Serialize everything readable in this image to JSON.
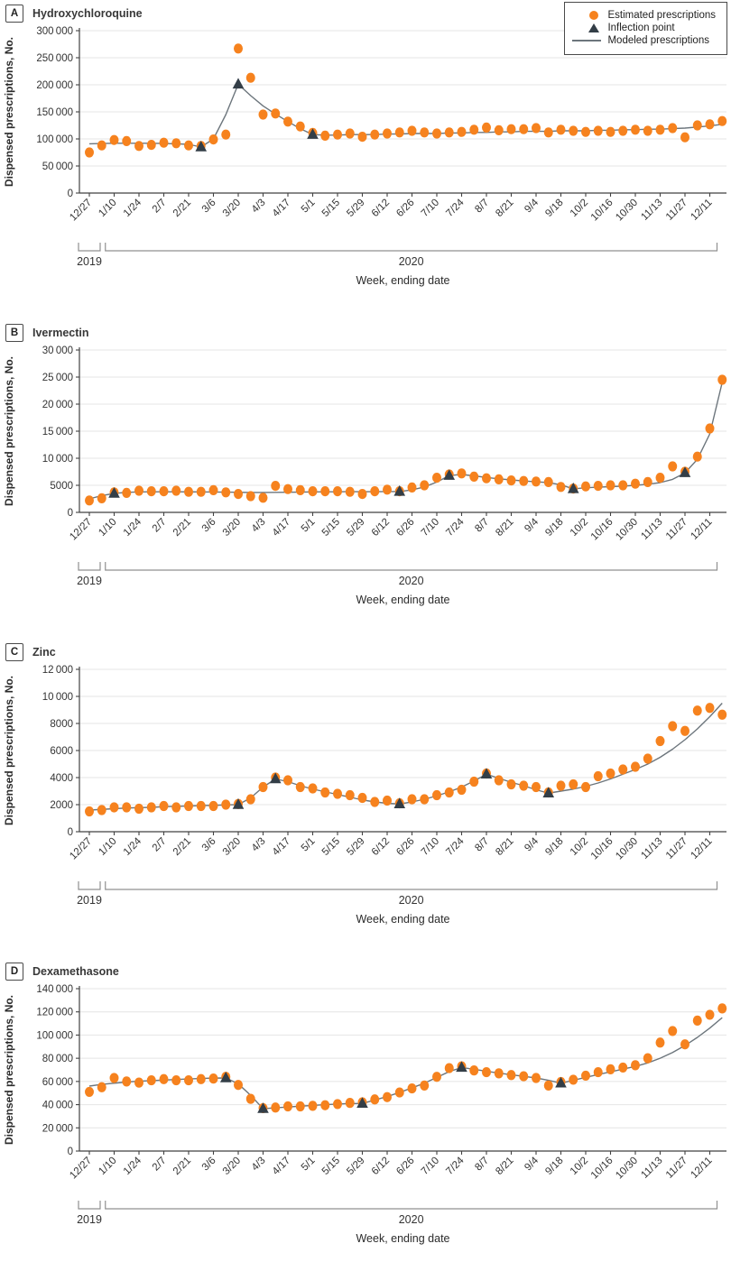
{
  "figure": {
    "x_axis_title": "Week, ending date",
    "era": {
      "y2019": "2019",
      "y2020": "2020"
    },
    "legend": [
      {
        "marker": "circle",
        "label": "Estimated prescriptions"
      },
      {
        "marker": "triangle",
        "label": "Inflection point"
      },
      {
        "marker": "line",
        "label": "Modeled prescriptions"
      }
    ],
    "colors": {
      "estimated": "#F6821E",
      "inflection": "#333E47",
      "model": "#6C757C",
      "grid": "#E4E4E4",
      "axis": "#424242",
      "tick_text": "#333333",
      "bracket": "#909090",
      "title_text": "#2B2B2B"
    }
  },
  "chart_data": [
    {
      "type": "scatter",
      "panel": "A",
      "title": "Hydroxychloroquine",
      "xlabel": "Week, ending date",
      "ylabel": "Dispensed prescriptions, No.",
      "ylim": [
        0,
        300000
      ],
      "ytick_step": 50000,
      "grid": "horizontal",
      "legend_position": "top-right",
      "x": [
        "12/27",
        "1/3",
        "1/10",
        "1/17",
        "1/24",
        "1/31",
        "2/7",
        "2/14",
        "2/21",
        "2/28",
        "3/6",
        "3/13",
        "3/20",
        "3/27",
        "4/3",
        "4/10",
        "4/17",
        "4/24",
        "5/1",
        "5/8",
        "5/15",
        "5/22",
        "5/29",
        "6/5",
        "6/12",
        "6/19",
        "6/26",
        "7/3",
        "7/10",
        "7/17",
        "7/24",
        "7/31",
        "8/7",
        "8/14",
        "8/21",
        "8/28",
        "9/4",
        "9/11",
        "9/18",
        "9/25",
        "10/2",
        "10/9",
        "10/16",
        "10/23",
        "10/30",
        "11/6",
        "11/13",
        "11/20",
        "11/27",
        "12/4",
        "12/11",
        "12/18"
      ],
      "series": [
        {
          "name": "Estimated prescriptions",
          "marker": "circle",
          "values": [
            75000,
            88000,
            98000,
            96000,
            87000,
            89000,
            93000,
            92000,
            88000,
            87000,
            99000,
            108000,
            267000,
            213000,
            145000,
            147000,
            132000,
            123000,
            111000,
            106000,
            108000,
            110000,
            104000,
            108000,
            110000,
            112000,
            115000,
            112000,
            110000,
            112000,
            113000,
            117000,
            121000,
            116000,
            118000,
            118000,
            120000,
            112000,
            117000,
            115000,
            113000,
            115000,
            113000,
            115000,
            117000,
            115000,
            117000,
            120000,
            103000,
            125000,
            127000,
            133000
          ]
        },
        {
          "name": "Modeled prescriptions",
          "marker": "line",
          "values": [
            91000,
            91500,
            92000,
            92000,
            92000,
            92000,
            91500,
            91000,
            90000,
            85000,
            100000,
            145000,
            201000,
            180000,
            161000,
            146000,
            132000,
            119000,
            108000,
            107000,
            107000,
            108000,
            108000,
            108000,
            109000,
            109000,
            110000,
            110000,
            110000,
            111000,
            111000,
            112000,
            112000,
            113000,
            113000,
            114000,
            114000,
            114000,
            115000,
            115000,
            115000,
            116000,
            116000,
            117000,
            117000,
            118000,
            118000,
            119000,
            120000,
            122000,
            124000,
            127000
          ]
        }
      ],
      "inflection_points": [
        {
          "x": "2/28",
          "index": 9,
          "value": 85000
        },
        {
          "x": "3/20",
          "index": 12,
          "value": 201000
        },
        {
          "x": "5/1",
          "index": 18,
          "value": 108000
        }
      ]
    },
    {
      "type": "scatter",
      "panel": "B",
      "title": "Ivermectin",
      "xlabel": "Week, ending date",
      "ylabel": "Dispensed prescriptions, No.",
      "ylim": [
        0,
        30000
      ],
      "ytick_step": 5000,
      "grid": "horizontal",
      "x": [
        "12/27",
        "1/3",
        "1/10",
        "1/17",
        "1/24",
        "1/31",
        "2/7",
        "2/14",
        "2/21",
        "2/28",
        "3/6",
        "3/13",
        "3/20",
        "3/27",
        "4/3",
        "4/10",
        "4/17",
        "4/24",
        "5/1",
        "5/8",
        "5/15",
        "5/22",
        "5/29",
        "6/5",
        "6/12",
        "6/19",
        "6/26",
        "7/3",
        "7/10",
        "7/17",
        "7/24",
        "7/31",
        "8/7",
        "8/14",
        "8/21",
        "8/28",
        "9/4",
        "9/11",
        "9/18",
        "9/25",
        "10/2",
        "10/9",
        "10/16",
        "10/23",
        "10/30",
        "11/6",
        "11/13",
        "11/20",
        "11/27",
        "12/4",
        "12/11",
        "12/18"
      ],
      "series": [
        {
          "name": "Estimated prescriptions",
          "marker": "circle",
          "values": [
            2200,
            2600,
            3700,
            3600,
            4000,
            3900,
            3900,
            4000,
            3800,
            3800,
            4100,
            3700,
            3400,
            3000,
            2700,
            4900,
            4300,
            4100,
            3900,
            3900,
            3900,
            3800,
            3400,
            3900,
            4200,
            3900,
            4600,
            5000,
            6400,
            7000,
            7200,
            6600,
            6300,
            6100,
            5900,
            5800,
            5700,
            5600,
            4700,
            4400,
            4800,
            4900,
            5000,
            5000,
            5300,
            5600,
            6400,
            8500,
            7500,
            10300,
            15500,
            24500
          ]
        },
        {
          "name": "Modeled prescriptions",
          "marker": "line",
          "values": [
            2500,
            3100,
            3500,
            3700,
            3780,
            3800,
            3800,
            3800,
            3790,
            3780,
            3760,
            3740,
            3710,
            3680,
            3670,
            3690,
            3720,
            3750,
            3780,
            3800,
            3810,
            3820,
            3820,
            3830,
            3840,
            3850,
            4150,
            4700,
            5600,
            6800,
            7000,
            6750,
            6450,
            6200,
            6000,
            5800,
            5650,
            5500,
            5100,
            4350,
            4550,
            4650,
            4750,
            4850,
            5000,
            5200,
            5500,
            6100,
            7300,
            9800,
            14500,
            24000
          ]
        }
      ],
      "inflection_points": [
        {
          "x": "1/10",
          "index": 2,
          "value": 3500
        },
        {
          "x": "6/19",
          "index": 25,
          "value": 3850
        },
        {
          "x": "7/17",
          "index": 29,
          "value": 6800
        },
        {
          "x": "9/25",
          "index": 39,
          "value": 4350
        },
        {
          "x": "11/27",
          "index": 48,
          "value": 7300
        }
      ]
    },
    {
      "type": "scatter",
      "panel": "C",
      "title": "Zinc",
      "xlabel": "Week, ending date",
      "ylabel": "Dispensed prescriptions, No.",
      "ylim": [
        0,
        12000
      ],
      "ytick_step": 2000,
      "grid": "horizontal",
      "x": [
        "12/27",
        "1/3",
        "1/10",
        "1/17",
        "1/24",
        "1/31",
        "2/7",
        "2/14",
        "2/21",
        "2/28",
        "3/6",
        "3/13",
        "3/20",
        "3/27",
        "4/3",
        "4/10",
        "4/17",
        "4/24",
        "5/1",
        "5/8",
        "5/15",
        "5/22",
        "5/29",
        "6/5",
        "6/12",
        "6/19",
        "6/26",
        "7/3",
        "7/10",
        "7/17",
        "7/24",
        "7/31",
        "8/7",
        "8/14",
        "8/21",
        "8/28",
        "9/4",
        "9/11",
        "9/18",
        "9/25",
        "10/2",
        "10/9",
        "10/16",
        "10/23",
        "10/30",
        "11/6",
        "11/13",
        "11/20",
        "11/27",
        "12/4",
        "12/11",
        "12/18"
      ],
      "series": [
        {
          "name": "Estimated prescriptions",
          "marker": "circle",
          "values": [
            1500,
            1600,
            1800,
            1800,
            1700,
            1800,
            1900,
            1800,
            1900,
            1900,
            1900,
            2000,
            2050,
            2400,
            3300,
            4000,
            3800,
            3300,
            3200,
            2900,
            2800,
            2700,
            2500,
            2200,
            2300,
            2100,
            2400,
            2400,
            2700,
            2900,
            3100,
            3700,
            4300,
            3800,
            3500,
            3400,
            3300,
            2900,
            3400,
            3500,
            3300,
            4100,
            4300,
            4600,
            4800,
            5400,
            6700,
            7800,
            7450,
            8950,
            9150,
            8650
          ]
        },
        {
          "name": "Modeled prescriptions",
          "marker": "line",
          "values": [
            1600,
            1650,
            1700,
            1750,
            1780,
            1800,
            1850,
            1880,
            1900,
            1930,
            1950,
            1980,
            2000,
            2500,
            3300,
            3900,
            3700,
            3400,
            3150,
            2950,
            2750,
            2550,
            2350,
            2200,
            2100,
            2050,
            2200,
            2400,
            2650,
            2950,
            3300,
            3750,
            4250,
            3950,
            3650,
            3400,
            3100,
            2850,
            3000,
            3150,
            3350,
            3600,
            3900,
            4250,
            4600,
            5000,
            5500,
            6100,
            6800,
            7600,
            8500,
            9500
          ]
        }
      ],
      "inflection_points": [
        {
          "x": "3/20",
          "index": 12,
          "value": 2000
        },
        {
          "x": "4/10",
          "index": 15,
          "value": 3900
        },
        {
          "x": "6/19",
          "index": 25,
          "value": 2050
        },
        {
          "x": "8/7",
          "index": 32,
          "value": 4250
        },
        {
          "x": "9/11",
          "index": 37,
          "value": 2850
        }
      ]
    },
    {
      "type": "scatter",
      "panel": "D",
      "title": "Dexamethasone",
      "xlabel": "Week, ending date",
      "ylabel": "Dispensed prescriptions, No.",
      "ylim": [
        0,
        140000
      ],
      "ytick_step": 20000,
      "grid": "horizontal",
      "x": [
        "12/27",
        "1/3",
        "1/10",
        "1/17",
        "1/24",
        "1/31",
        "2/7",
        "2/14",
        "2/21",
        "2/28",
        "3/6",
        "3/13",
        "3/20",
        "3/27",
        "4/3",
        "4/10",
        "4/17",
        "4/24",
        "5/1",
        "5/8",
        "5/15",
        "5/22",
        "5/29",
        "6/5",
        "6/12",
        "6/19",
        "6/26",
        "7/3",
        "7/10",
        "7/17",
        "7/24",
        "7/31",
        "8/7",
        "8/14",
        "8/21",
        "8/28",
        "9/4",
        "9/11",
        "9/18",
        "9/25",
        "10/2",
        "10/9",
        "10/16",
        "10/23",
        "10/30",
        "11/6",
        "11/13",
        "11/20",
        "11/27",
        "12/4",
        "12/11",
        "12/18"
      ],
      "series": [
        {
          "name": "Estimated prescriptions",
          "marker": "circle",
          "values": [
            51000,
            55000,
            63000,
            60000,
            59000,
            61000,
            62000,
            61000,
            61000,
            62000,
            62500,
            64000,
            57000,
            45000,
            37000,
            37500,
            38500,
            38500,
            39000,
            39500,
            40500,
            41500,
            42000,
            44500,
            46500,
            50500,
            54000,
            56500,
            64000,
            71500,
            73000,
            69500,
            68000,
            67000,
            65500,
            64500,
            63000,
            56500,
            59500,
            61500,
            65000,
            68000,
            70500,
            72000,
            74000,
            80000,
            93500,
            103500,
            92000,
            112500,
            117500,
            123000
          ]
        },
        {
          "name": "Modeled prescriptions",
          "marker": "line",
          "values": [
            56000,
            57500,
            58500,
            59500,
            60200,
            60700,
            61200,
            61700,
            62200,
            62600,
            62900,
            63000,
            58000,
            48000,
            36500,
            37300,
            38000,
            38700,
            39300,
            40000,
            40500,
            41000,
            41000,
            44000,
            47000,
            50500,
            54500,
            58500,
            63500,
            68500,
            72000,
            70500,
            68800,
            67200,
            65800,
            64400,
            63000,
            61000,
            58500,
            61000,
            63500,
            66000,
            68300,
            70600,
            73000,
            76000,
            80000,
            85000,
            91000,
            98000,
            106000,
            115000
          ]
        }
      ],
      "inflection_points": [
        {
          "x": "3/13",
          "index": 11,
          "value": 63000
        },
        {
          "x": "4/3",
          "index": 14,
          "value": 36500
        },
        {
          "x": "5/29",
          "index": 22,
          "value": 41000
        },
        {
          "x": "7/24",
          "index": 30,
          "value": 72000
        },
        {
          "x": "9/18",
          "index": 38,
          "value": 58500
        }
      ]
    }
  ]
}
